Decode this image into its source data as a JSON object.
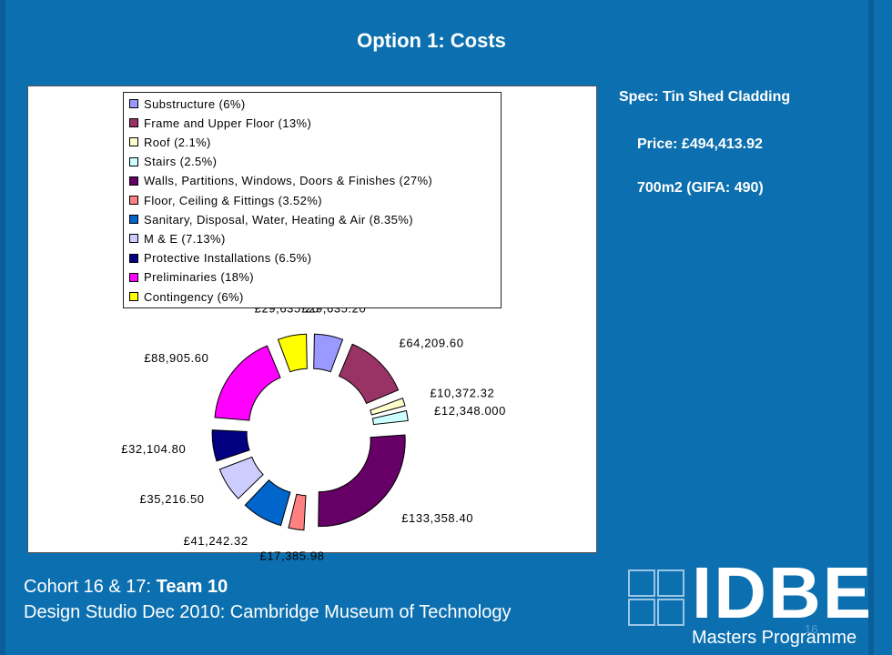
{
  "title": "Option 1: Costs",
  "spec": {
    "line1": "Spec: Tin Shed Cladding",
    "line2": "Price: £494,413.92",
    "line3": "700m2 (GIFA: 490)"
  },
  "footer": {
    "line1_prefix": "Cohort 16 & 17: ",
    "line1_bold": "Team 10",
    "line2": "Design Studio Dec 2010: Cambridge Museum of Technology"
  },
  "logo": {
    "text": "IDBE",
    "subtitle": "Masters Programme"
  },
  "page_number": "16",
  "chart_data": {
    "type": "pie",
    "variant": "exploded-doughnut",
    "legend_position": "top",
    "slices": [
      {
        "label": "Substructure (6%)",
        "value": 29635.2,
        "value_label": "£29,635.20",
        "color": "#9999ff"
      },
      {
        "label": "Frame and Upper Floor (13%)",
        "value": 64209.6,
        "value_label": "£64,209.60",
        "color": "#993366"
      },
      {
        "label": "Roof (2.1%)",
        "value": 10372.32,
        "value_label": "£10,372.32",
        "color": "#ffffcc"
      },
      {
        "label": "Stairs (2.5%)",
        "value": 12348.0,
        "value_label": "£12,348.000",
        "color": "#ccffff"
      },
      {
        "label": "Walls, Partitions, Windows, Doors & Finishes (27%)",
        "value": 133358.4,
        "value_label": "£133,358.40",
        "color": "#660066"
      },
      {
        "label": "Floor, Ceiling & Fittings (3.52%)",
        "value": 17385.98,
        "value_label": "£17,385.98",
        "color": "#ff8080"
      },
      {
        "label": "Sanitary, Disposal, Water, Heating & Air (8.35%)",
        "value": 41242.32,
        "value_label": "£41,242.32",
        "color": "#0066cc"
      },
      {
        "label": "M & E (7.13%)",
        "value": 35216.5,
        "value_label": "£35,216.50",
        "color": "#ccccff"
      },
      {
        "label": "Protective Installations (6.5%)",
        "value": 32104.8,
        "value_label": "£32,104.80",
        "color": "#000080"
      },
      {
        "label": "Preliminaries (18%)",
        "value": 88905.6,
        "value_label": "£88,905.60",
        "color": "#ff00ff"
      },
      {
        "label": "Contingency (6%)",
        "value": 29635.2,
        "value_label": "£29,635.20",
        "color": "#ffff00"
      }
    ]
  }
}
